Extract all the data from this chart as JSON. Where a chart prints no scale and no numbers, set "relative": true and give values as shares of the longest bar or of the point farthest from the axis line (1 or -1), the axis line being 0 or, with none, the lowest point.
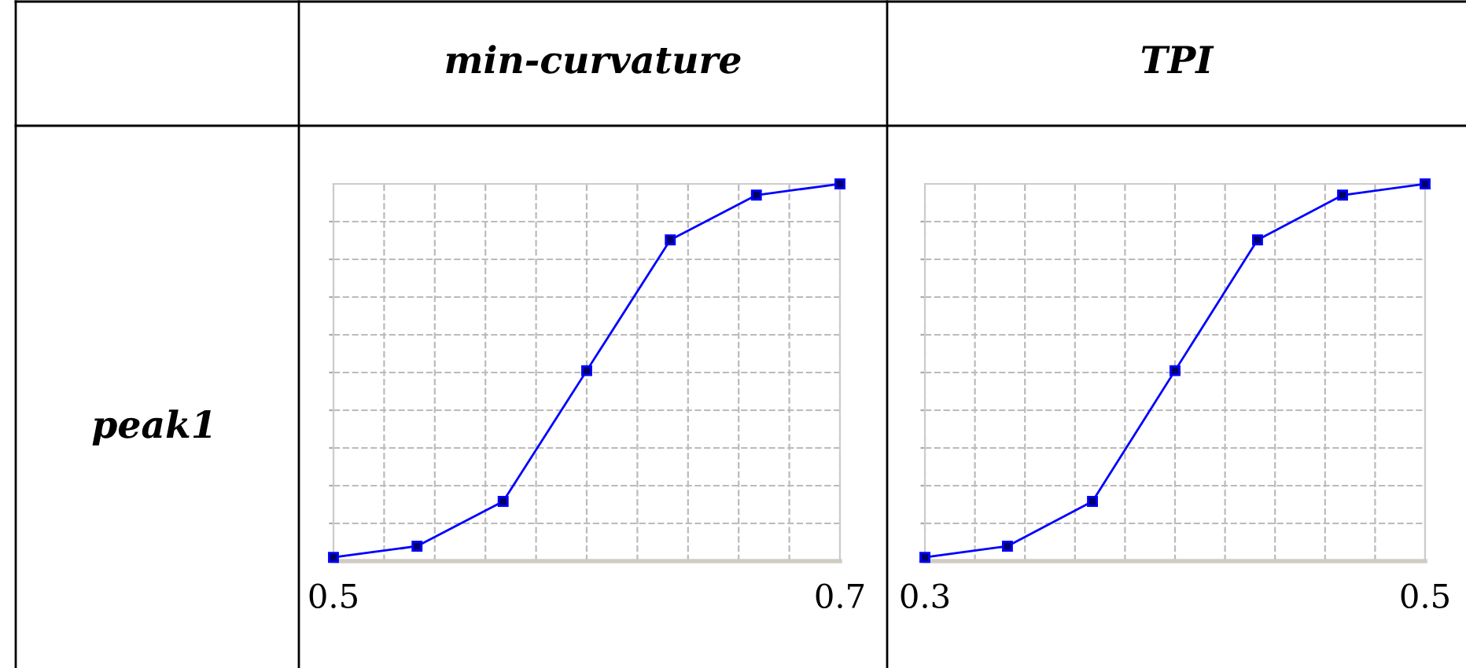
{
  "chart_data": [
    {
      "type": "line",
      "title": "min-curvature",
      "annotations": [
        "peak1"
      ],
      "relative": true,
      "marker": "square",
      "line_style": "solid",
      "grid": true,
      "x": [
        0.5,
        0.533,
        0.567,
        0.6,
        0.633,
        0.667,
        0.7
      ],
      "xlim": [
        0.5,
        0.7
      ],
      "xticks": [
        0.5,
        {
          "value": 0.52,
          "label": null
        },
        {
          "value": 0.54,
          "label": null
        },
        {
          "value": 0.56,
          "label": null
        },
        {
          "value": 0.58,
          "label": null
        },
        {
          "value": 0.6,
          "label": null
        },
        {
          "value": 0.62,
          "label": null
        },
        {
          "value": 0.64,
          "label": null
        },
        {
          "value": 0.66,
          "label": null
        },
        {
          "value": 0.68,
          "label": null
        },
        0.7
      ],
      "series": [
        {
          "color": "#0000ff",
          "values": [
            0,
            0.03,
            0.15,
            0.5,
            0.85,
            0.97,
            1
          ]
        }
      ]
    },
    {
      "type": "line",
      "title": "TPI",
      "relative": true,
      "marker": "square",
      "line_style": "solid",
      "grid": true,
      "x": [
        0.3,
        0.333,
        0.367,
        0.4,
        0.433,
        0.467,
        0.5
      ],
      "xlim": [
        0.3,
        0.5
      ],
      "xticks": [
        0.3,
        {
          "value": 0.32,
          "label": null
        },
        {
          "value": 0.34,
          "label": null
        },
        {
          "value": 0.36,
          "label": null
        },
        {
          "value": 0.38,
          "label": null
        },
        {
          "value": 0.4,
          "label": null
        },
        {
          "value": 0.42,
          "label": null
        },
        {
          "value": 0.44,
          "label": null
        },
        {
          "value": 0.46,
          "label": null
        },
        {
          "value": 0.48,
          "label": null
        },
        0.5
      ],
      "series": [
        {
          "color": "#0000ff",
          "values": [
            0,
            0.03,
            0.15,
            0.5,
            0.85,
            0.97,
            1
          ]
        }
      ]
    }
  ]
}
